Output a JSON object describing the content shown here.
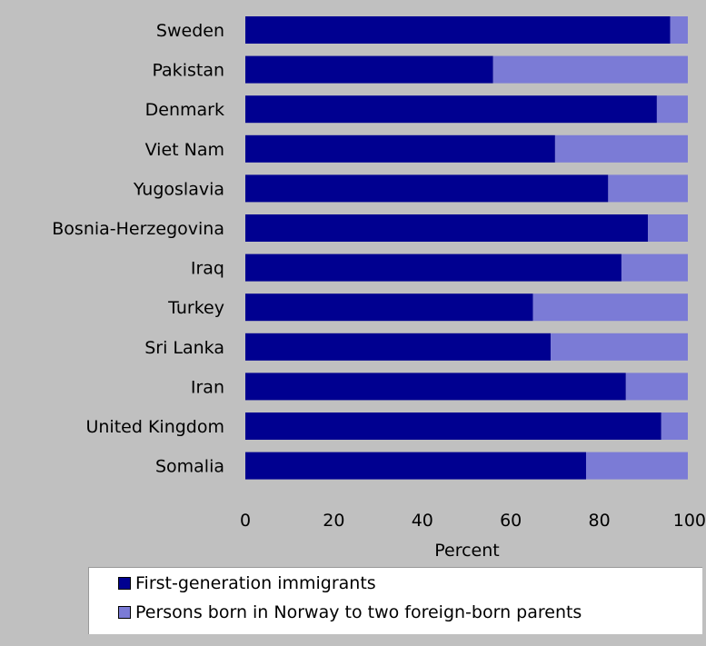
{
  "chart_data": {
    "type": "bar",
    "orientation": "horizontal",
    "stacked": true,
    "categories": [
      "Sweden",
      "Pakistan",
      "Denmark",
      "Viet Nam",
      "Yugoslavia",
      "Bosnia-Herzegovina",
      "Iraq",
      "Turkey",
      "Sri Lanka",
      "Iran",
      "United Kingdom",
      "Somalia"
    ],
    "series": [
      {
        "name": "First-generation immigrants",
        "color": "#000090",
        "values": [
          96,
          56,
          93,
          70,
          82,
          91,
          85,
          65,
          69,
          86,
          94,
          77
        ]
      },
      {
        "name": "Persons born in Norway to two foreign-born parents",
        "color": "#7b7bd6",
        "values": [
          4,
          44,
          7,
          30,
          18,
          9,
          15,
          35,
          31,
          14,
          6,
          23
        ]
      }
    ],
    "xlabel": "Percent",
    "xlim": [
      0,
      100
    ],
    "xticks": [
      "0",
      "20",
      "40",
      "60",
      "80",
      "100"
    ],
    "legend_position": "bottom"
  }
}
